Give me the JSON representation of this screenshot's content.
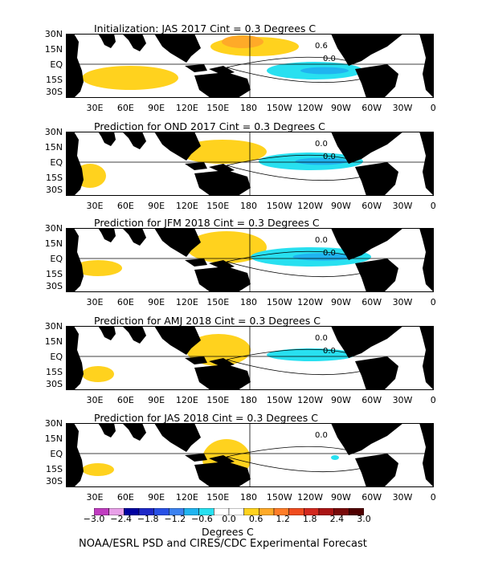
{
  "chart_data": [
    {
      "type": "heatmap",
      "title": "Initialization: JAS 2017  Cint = 0.3 Degrees C",
      "contour_labels": [
        "0.6",
        "0.0"
      ],
      "fill": "warm north-central Pacific (0.3–0.6); cool eastern equatorial Pacific (-0.3 to -0.6)"
    },
    {
      "type": "heatmap",
      "title": "Prediction for OND 2017  Cint = 0.3 Degrees C",
      "contour_labels": [
        "0.0",
        "0.0"
      ],
      "fill": "La Nina-like cool tongue along equator from 150W to 90W (-0.3 to -0.9)"
    },
    {
      "type": "heatmap",
      "title": "Prediction for JFM 2018  Cint = 0.3 Degrees C",
      "contour_labels": [
        "0.0",
        "0.0"
      ],
      "fill": "cool tongue from dateline to 90W (-0.3 to -0.9); warm western Pacific"
    },
    {
      "type": "heatmap",
      "title": "Prediction for AMJ 2018  Cint = 0.3 Degrees C",
      "contour_labels": [
        "0.0",
        "0.0"
      ],
      "fill": "weakening cool anomaly 150W–90W (-0.3 to -0.6)"
    },
    {
      "type": "heatmap",
      "title": "Prediction for JAS 2018  Cint = 0.3 Degrees C",
      "contour_labels": [
        "0.0"
      ],
      "fill": "near-neutral; small warm patches in western Pacific"
    }
  ],
  "axes": {
    "lat_labels": [
      "30N",
      "15N",
      "EQ",
      "15S",
      "30S"
    ],
    "lon_labels": [
      "30E",
      "60E",
      "90E",
      "120E",
      "150E",
      "180",
      "150W",
      "120W",
      "90W",
      "60W",
      "30W",
      "0"
    ]
  },
  "colorbar": {
    "labels": [
      "−3.0",
      "−2.4",
      "−1.8",
      "−1.2",
      "−0.6",
      "0.0",
      "0.6",
      "1.2",
      "1.8",
      "2.4",
      "3.0"
    ],
    "colors": [
      "#c03cc0",
      "#e8a0e8",
      "#0000a0",
      "#1e28c8",
      "#2850e6",
      "#3c82f0",
      "#20b4f0",
      "#28e0f0",
      "#ffffff",
      "#ffffff",
      "#ffd21e",
      "#ffaa28",
      "#ff7d28",
      "#f04b1e",
      "#d2281e",
      "#aa1414",
      "#780a0a",
      "#500000"
    ],
    "units": "Degrees C"
  },
  "footer": "NOAA/ESRL PSD and CIRES/CDC Experimental Forecast",
  "colors": {
    "land": "#000000",
    "warm": "#ffd21e",
    "warm2": "#ffaa28",
    "cool": "#28e0f0",
    "cool2": "#20b4f0"
  }
}
